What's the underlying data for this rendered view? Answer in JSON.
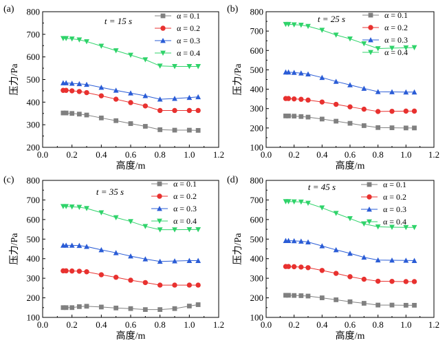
{
  "chart_data": [
    {
      "type": "line",
      "panel_label": "(a)",
      "time": "t = 15 s",
      "xlabel": "高度/m",
      "ylabel": "压力/Pa",
      "xlim": [
        0.0,
        1.2
      ],
      "ylim": [
        200,
        800
      ],
      "xticks": [
        "0.0",
        "0.2",
        "0.4",
        "0.6",
        "0.8",
        "1.0",
        "1.2"
      ],
      "yticks": [
        "200",
        "300",
        "400",
        "500",
        "600",
        "700",
        "800"
      ],
      "legend_position": "top-right",
      "x": [
        0.14,
        0.16,
        0.2,
        0.25,
        0.3,
        0.4,
        0.5,
        0.6,
        0.7,
        0.8,
        0.9,
        1.0,
        1.06
      ],
      "series": [
        {
          "name": "α = 0.1",
          "values": [
            352,
            352,
            350,
            347,
            343,
            330,
            318,
            305,
            293,
            278,
            276,
            276,
            275
          ]
        },
        {
          "name": "α = 0.2",
          "values": [
            452,
            452,
            450,
            447,
            442,
            428,
            413,
            398,
            383,
            363,
            363,
            363,
            363
          ]
        },
        {
          "name": "α = 0.3",
          "values": [
            485,
            485,
            483,
            481,
            478,
            465,
            452,
            440,
            428,
            413,
            416,
            420,
            423
          ]
        },
        {
          "name": "α = 0.4",
          "values": [
            682,
            682,
            680,
            676,
            668,
            648,
            628,
            608,
            588,
            560,
            558,
            558,
            558
          ]
        }
      ]
    },
    {
      "type": "line",
      "panel_label": "(b)",
      "time": "t = 25 s",
      "xlabel": "高度/m",
      "ylabel": "压力/Pa",
      "xlim": [
        0.0,
        1.2
      ],
      "ylim": [
        100,
        800
      ],
      "xticks": [
        "0.0",
        "0.2",
        "0.4",
        "0.6",
        "0.8",
        "1.0",
        "1.2"
      ],
      "yticks": [
        "100",
        "200",
        "300",
        "400",
        "500",
        "600",
        "700",
        "800"
      ],
      "legend_position": "top-right",
      "x": [
        0.14,
        0.16,
        0.2,
        0.25,
        0.3,
        0.4,
        0.5,
        0.6,
        0.7,
        0.8,
        0.9,
        1.0,
        1.06
      ],
      "series": [
        {
          "name": "α = 0.1",
          "values": [
            262,
            262,
            261,
            259,
            256,
            246,
            235,
            224,
            212,
            202,
            201,
            200,
            200
          ]
        },
        {
          "name": "α = 0.2",
          "values": [
            352,
            352,
            350,
            348,
            344,
            334,
            322,
            309,
            297,
            285,
            286,
            287,
            287
          ]
        },
        {
          "name": "α = 0.3",
          "values": [
            488,
            488,
            486,
            483,
            478,
            460,
            440,
            422,
            404,
            387,
            386,
            385,
            385
          ]
        },
        {
          "name": "α = 0.4",
          "values": [
            735,
            735,
            733,
            731,
            725,
            705,
            680,
            660,
            635,
            610,
            612,
            614,
            615
          ]
        }
      ]
    },
    {
      "type": "line",
      "panel_label": "(c)",
      "time": "t = 35 s",
      "xlabel": "高度/m",
      "ylabel": "压力/Pa",
      "xlim": [
        0.0,
        1.2
      ],
      "ylim": [
        100,
        800
      ],
      "xticks": [
        "0.0",
        "0.2",
        "0.4",
        "0.6",
        "0.8",
        "1.0",
        "1.2"
      ],
      "yticks": [
        "100",
        "200",
        "300",
        "400",
        "500",
        "600",
        "700",
        "800"
      ],
      "legend_position": "top-right",
      "x": [
        0.14,
        0.16,
        0.2,
        0.25,
        0.3,
        0.4,
        0.5,
        0.6,
        0.7,
        0.8,
        0.9,
        1.0,
        1.06
      ],
      "series": [
        {
          "name": "α = 0.1",
          "values": [
            150,
            150,
            150,
            155,
            157,
            153,
            148,
            145,
            140,
            140,
            145,
            158,
            165
          ]
        },
        {
          "name": "α = 0.2",
          "values": [
            338,
            338,
            337,
            336,
            333,
            318,
            305,
            290,
            278,
            265,
            265,
            265,
            265
          ]
        },
        {
          "name": "α = 0.3",
          "values": [
            468,
            468,
            468,
            467,
            462,
            445,
            430,
            413,
            398,
            386,
            388,
            390,
            390
          ]
        },
        {
          "name": "α = 0.4",
          "values": [
            667,
            667,
            665,
            663,
            657,
            635,
            610,
            590,
            565,
            548,
            548,
            549,
            549
          ]
        }
      ]
    },
    {
      "type": "line",
      "panel_label": "(d)",
      "time": "t = 45 s",
      "xlabel": "高度/m",
      "ylabel": "压力/Pa",
      "xlim": [
        0.0,
        1.2
      ],
      "ylim": [
        100,
        800
      ],
      "xticks": [
        "0.0",
        "0.2",
        "0.4",
        "0.6",
        "0.8",
        "1.0",
        "1.2"
      ],
      "yticks": [
        "100",
        "200",
        "300",
        "400",
        "500",
        "600",
        "700",
        "800"
      ],
      "legend_position": "top-right",
      "x": [
        0.14,
        0.16,
        0.2,
        0.25,
        0.3,
        0.4,
        0.5,
        0.6,
        0.7,
        0.8,
        0.9,
        1.0,
        1.06
      ],
      "series": [
        {
          "name": "α = 0.1",
          "values": [
            213,
            213,
            212,
            211,
            209,
            200,
            190,
            180,
            172,
            163,
            163,
            162,
            162
          ]
        },
        {
          "name": "α = 0.2",
          "values": [
            360,
            360,
            359,
            357,
            354,
            340,
            325,
            308,
            295,
            285,
            284,
            283,
            283
          ]
        },
        {
          "name": "α = 0.3",
          "values": [
            492,
            492,
            491,
            489,
            485,
            465,
            445,
            427,
            407,
            393,
            392,
            391,
            390
          ]
        },
        {
          "name": "α = 0.4",
          "values": [
            692,
            692,
            691,
            690,
            684,
            660,
            632,
            605,
            578,
            563,
            561,
            560,
            560
          ]
        }
      ]
    }
  ],
  "series_styles": [
    {
      "color": "#808080",
      "marker": "square"
    },
    {
      "color": "#e8312f",
      "marker": "circle"
    },
    {
      "color": "#2a5cd6",
      "marker": "triangle-up"
    },
    {
      "color": "#2fd36a",
      "marker": "triangle-down"
    }
  ]
}
